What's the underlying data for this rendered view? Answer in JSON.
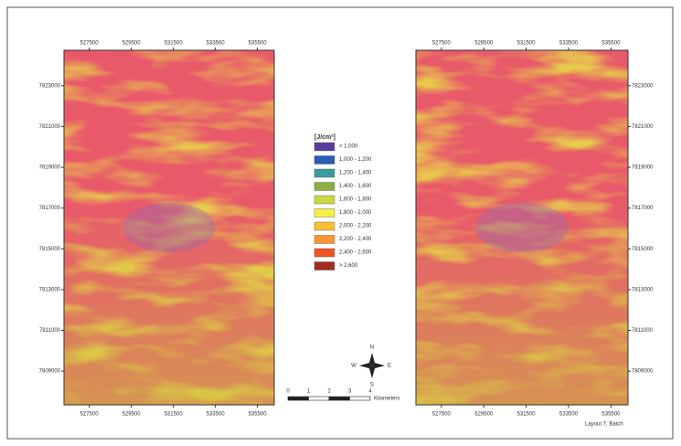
{
  "maps": {
    "x_ticks": [
      "527500",
      "529500",
      "531500",
      "533500",
      "535500"
    ],
    "y_ticks": [
      "7823000",
      "7821000",
      "7819000",
      "7817000",
      "7815000",
      "7813000",
      "7811000",
      "7809000"
    ]
  },
  "legend": {
    "title": "[J/cm²]",
    "items": [
      "< 1,000",
      "1,000 - 1,200",
      "1,200 - 1,400",
      "1,400 - 1,600",
      "1,600 - 1,800",
      "1,800 - 2,000",
      "2,000 - 2,200",
      "2,200 - 2,400",
      "2,400 - 2,600",
      "> 2,600"
    ],
    "colors": [
      "#5b3c9c",
      "#2c5cb4",
      "#3c9c9c",
      "#8cb044",
      "#c8d844",
      "#f4f044",
      "#f8c034",
      "#f89434",
      "#f05424",
      "#a42c1c"
    ]
  },
  "compass": {
    "n": "N",
    "s": "S",
    "e": "E",
    "w": "W"
  },
  "scale_bar": {
    "ticks": [
      "0",
      "1",
      "2",
      "3",
      "4"
    ],
    "unit": "Kilometers"
  },
  "footer": "Layout 7, Batch"
}
